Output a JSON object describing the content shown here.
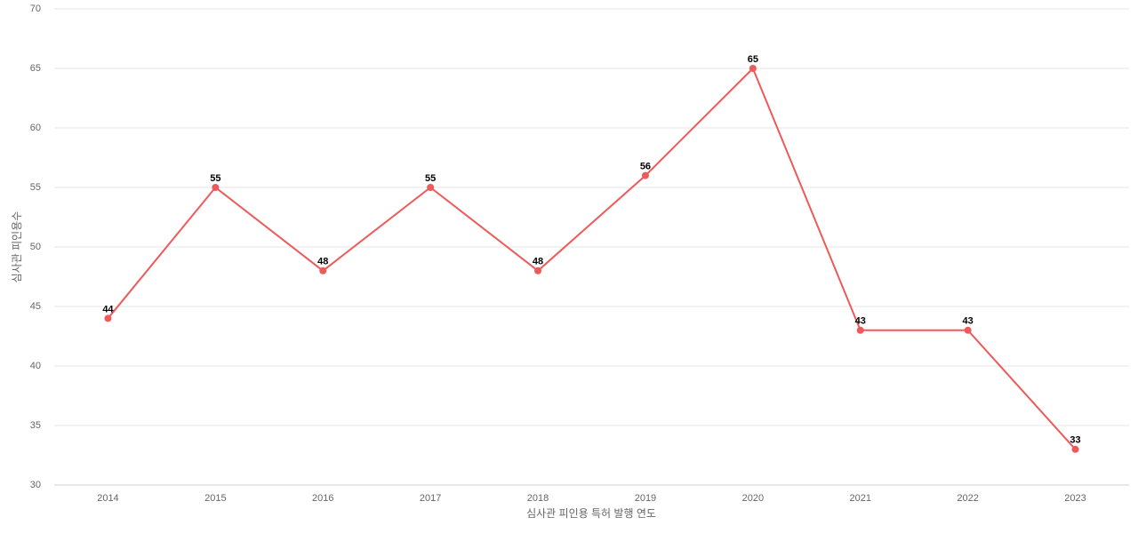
{
  "chart_data": {
    "type": "line",
    "x_label": "심사관 피인용 특허 발행 연도",
    "y_label": "심사관 피인용수",
    "categories": [
      "2014",
      "2015",
      "2016",
      "2017",
      "2018",
      "2019",
      "2020",
      "2021",
      "2022",
      "2023"
    ],
    "values": [
      44,
      55,
      48,
      55,
      48,
      56,
      65,
      43,
      43,
      33
    ],
    "color": "#ee5a5a",
    "ylim": [
      30,
      70
    ],
    "yticks": [
      30,
      35,
      40,
      45,
      50,
      55,
      60,
      65,
      70
    ],
    "grid": true
  }
}
